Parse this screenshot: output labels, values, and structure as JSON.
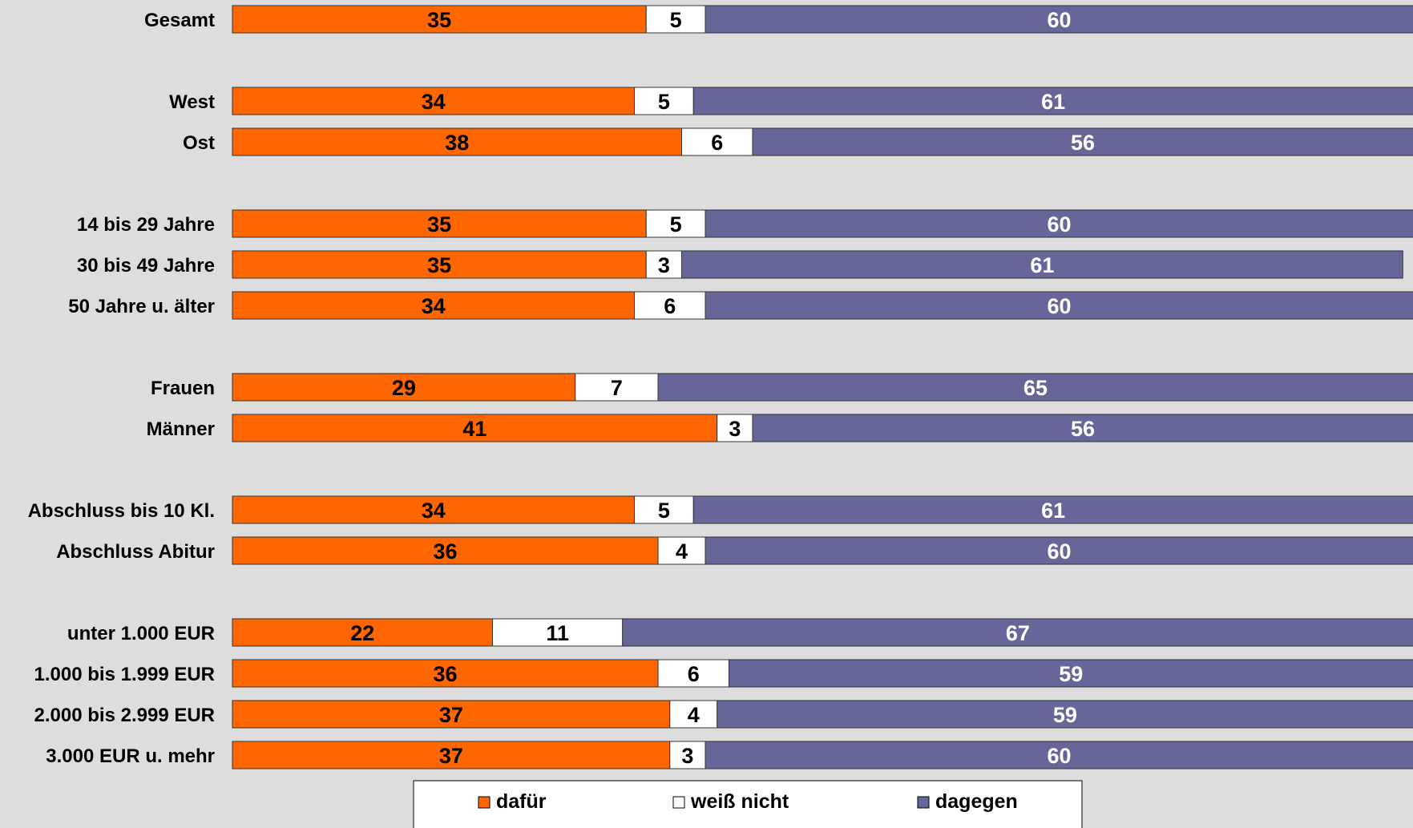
{
  "chart_data": {
    "type": "bar",
    "orientation": "horizontal",
    "stacked": true,
    "categories": [
      "Gesamt",
      "West",
      "Ost",
      "14 bis 29 Jahre",
      "30 bis 49 Jahre",
      "50 Jahre u. älter",
      "Frauen",
      "Männer",
      "Abschluss bis 10 Kl.",
      "Abschluss Abitur",
      "unter 1.000 EUR",
      "1.000 bis 1.999 EUR",
      "2.000 bis 2.999 EUR",
      "3.000 EUR u. mehr"
    ],
    "groups": [
      [
        0
      ],
      [
        1,
        2
      ],
      [
        3,
        4,
        5
      ],
      [
        6,
        7
      ],
      [
        8,
        9
      ],
      [
        10,
        11,
        12,
        13
      ]
    ],
    "series": [
      {
        "name": "dafür",
        "color": "#ff6600",
        "label_color": "#000000",
        "values": [
          35,
          34,
          38,
          35,
          35,
          34,
          29,
          41,
          34,
          36,
          22,
          36,
          37,
          37
        ]
      },
      {
        "name": "weiß nicht",
        "color": "#ffffff",
        "label_color": "#000000",
        "values": [
          5,
          5,
          6,
          5,
          3,
          6,
          7,
          3,
          5,
          4,
          11,
          6,
          4,
          3
        ]
      },
      {
        "name": "dagegen",
        "color": "#666699",
        "label_color": "#ffffff",
        "values": [
          60,
          61,
          56,
          60,
          61,
          60,
          65,
          56,
          61,
          60,
          67,
          59,
          59,
          60
        ]
      }
    ],
    "xlim": [
      0,
      100
    ],
    "legend_position": "bottom",
    "grid": false,
    "background": "#dddddd"
  }
}
